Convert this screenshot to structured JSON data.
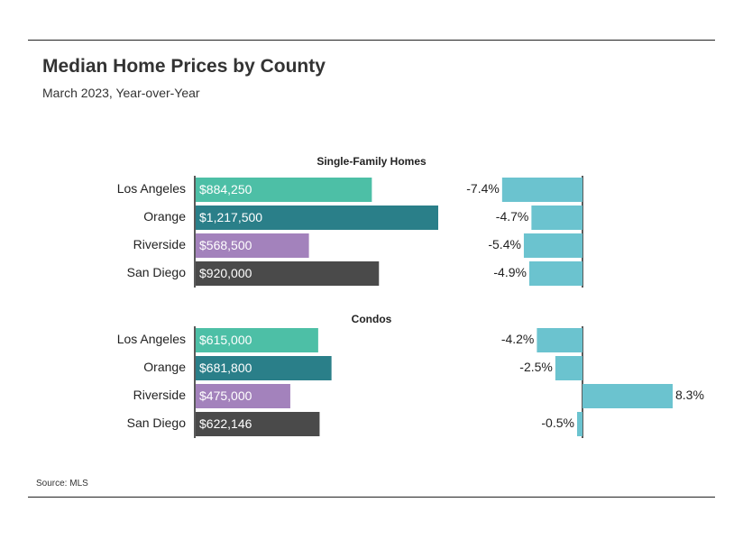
{
  "header": {
    "title": "Median Home Prices by County",
    "subtitle": "March 2023, Year-over-Year"
  },
  "footer": {
    "source": "Source: MLS"
  },
  "colors": {
    "Los Angeles": "#4dbfa6",
    "Orange": "#2a7f89",
    "Riverside": "#a382bc",
    "San Diego": "#4a4a4a",
    "change": "#6bc3cf"
  },
  "chart_data": [
    {
      "type": "bar",
      "title": "Single-Family Homes",
      "metric": "Median Price",
      "categories": [
        "Los Angeles",
        "Orange",
        "Riverside",
        "San Diego"
      ],
      "values": [
        884250,
        1217500,
        568500,
        920000
      ],
      "labels": [
        "$884,250",
        "$1,217,500",
        "$568,500",
        "$920,000"
      ],
      "change_values": [
        -7.4,
        -4.7,
        -5.4,
        -4.9
      ],
      "change_labels": [
        "-7.4%",
        "-4.7%",
        "-5.4%",
        "-4.9%"
      ]
    },
    {
      "type": "bar",
      "title": "Condos",
      "metric": "Median Price",
      "categories": [
        "Los Angeles",
        "Orange",
        "Riverside",
        "San Diego"
      ],
      "values": [
        615000,
        681800,
        475000,
        622146
      ],
      "labels": [
        "$615,000",
        "$681,800",
        "$475,000",
        "$622,146"
      ],
      "change_values": [
        -4.2,
        -2.5,
        8.3,
        -0.5
      ],
      "change_labels": [
        "-4.2%",
        "-2.5%",
        "8.3%",
        "-0.5%"
      ]
    }
  ]
}
